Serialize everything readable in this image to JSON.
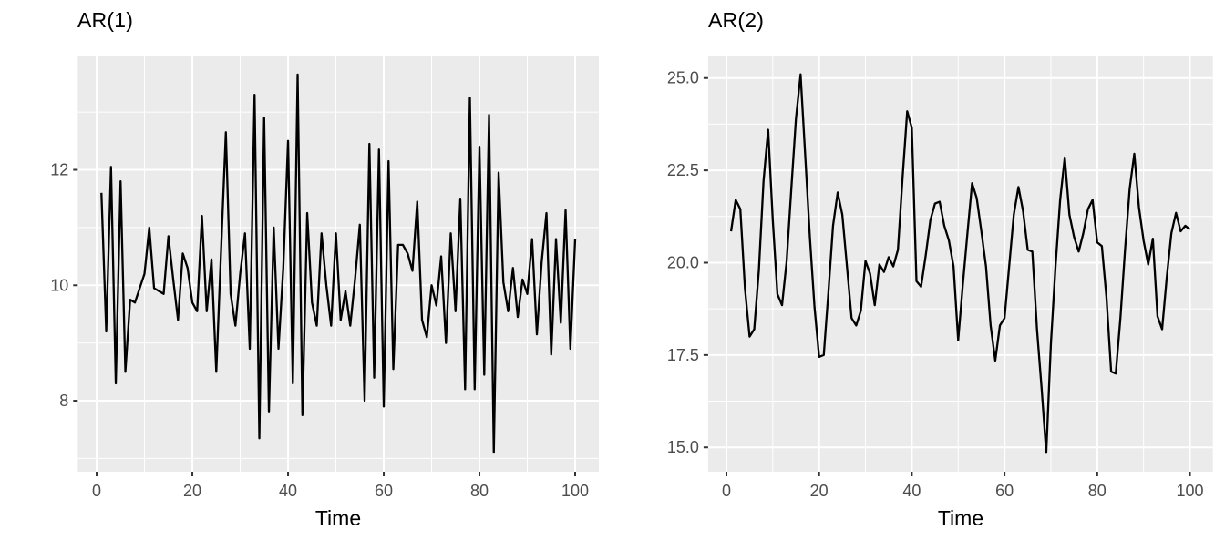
{
  "style": {
    "background": "#FFFFFF",
    "panel_bg": "#EBEBEB",
    "grid_color": "#FFFFFF",
    "line_color": "#000000",
    "tick_color": "#333333",
    "tick_label_color": "#4D4D4D",
    "text_color": "#000000"
  },
  "chart_data": [
    {
      "type": "line",
      "title": "AR(1)",
      "xlabel": "Time",
      "ylabel": "",
      "x_first": 1,
      "x_last": 100,
      "values": [
        11.6,
        9.2,
        12.05,
        8.3,
        11.8,
        8.5,
        9.75,
        9.7,
        9.95,
        10.2,
        11.0,
        9.95,
        9.9,
        9.85,
        10.85,
        10.1,
        9.4,
        10.55,
        10.3,
        9.7,
        9.55,
        11.2,
        9.55,
        10.45,
        8.5,
        10.6,
        12.65,
        9.85,
        9.3,
        10.2,
        10.9,
        8.9,
        13.3,
        7.35,
        12.9,
        7.8,
        11.0,
        8.9,
        10.3,
        12.5,
        8.3,
        13.65,
        7.75,
        11.25,
        9.7,
        9.3,
        10.9,
        10.0,
        9.3,
        10.9,
        9.4,
        9.9,
        9.3,
        10.1,
        11.05,
        8.0,
        12.45,
        8.4,
        12.35,
        7.9,
        12.15,
        8.55,
        10.7,
        10.7,
        10.55,
        10.25,
        11.45,
        9.4,
        9.1,
        10.0,
        9.65,
        10.5,
        9.0,
        10.9,
        9.55,
        11.5,
        8.2,
        13.25,
        8.2,
        12.4,
        8.45,
        12.95,
        7.1,
        11.95,
        10.05,
        9.55,
        10.3,
        9.45,
        10.1,
        9.85,
        10.8,
        9.15,
        10.4,
        11.25,
        8.8,
        10.8,
        9.35,
        11.3,
        8.9,
        10.8
      ],
      "xlim": [
        -3.95,
        104.95
      ],
      "ylim": [
        6.77,
        13.98
      ],
      "x_ticks": {
        "major": [
          0,
          20,
          40,
          60,
          80,
          100
        ],
        "labels": [
          "0",
          "20",
          "40",
          "60",
          "80",
          "100"
        ],
        "minor": [
          10,
          30,
          50,
          70,
          90
        ]
      },
      "y_ticks": {
        "major": [
          8,
          10,
          12
        ],
        "labels": [
          "8",
          "10",
          "12"
        ],
        "minor": [
          7,
          9,
          11,
          13
        ]
      },
      "grid": true,
      "legend": "none"
    },
    {
      "type": "line",
      "title": "AR(2)",
      "xlabel": "Time",
      "ylabel": "",
      "x_first": 1,
      "x_last": 100,
      "values": [
        20.85,
        21.7,
        21.45,
        19.3,
        18.0,
        18.2,
        19.8,
        22.2,
        23.6,
        21.15,
        19.15,
        18.85,
        20.05,
        22.0,
        23.9,
        25.1,
        22.9,
        20.7,
        18.8,
        17.45,
        17.5,
        19.2,
        21.0,
        21.9,
        21.3,
        19.9,
        18.5,
        18.3,
        18.7,
        20.05,
        19.7,
        18.85,
        19.95,
        19.75,
        20.15,
        19.9,
        20.35,
        22.3,
        24.1,
        23.65,
        19.5,
        19.35,
        20.2,
        21.15,
        21.6,
        21.65,
        21.0,
        20.6,
        19.9,
        17.9,
        19.4,
        20.8,
        22.15,
        21.75,
        20.85,
        19.9,
        18.3,
        17.35,
        18.3,
        18.5,
        19.9,
        21.3,
        22.05,
        21.4,
        20.35,
        20.3,
        18.2,
        16.6,
        14.85,
        17.8,
        19.9,
        21.7,
        22.85,
        21.3,
        20.7,
        20.3,
        20.8,
        21.45,
        21.7,
        20.55,
        20.45,
        19.05,
        17.05,
        17.0,
        18.5,
        20.35,
        22.0,
        22.95,
        21.5,
        20.6,
        19.95,
        20.65,
        18.55,
        18.2,
        19.6,
        20.8,
        21.35,
        20.85,
        21.0,
        20.9
      ],
      "xlim": [
        -3.95,
        104.95
      ],
      "ylim": [
        14.34,
        25.61
      ],
      "x_ticks": {
        "major": [
          0,
          20,
          40,
          60,
          80,
          100
        ],
        "labels": [
          "0",
          "20",
          "40",
          "60",
          "80",
          "100"
        ],
        "minor": [
          10,
          30,
          50,
          70,
          90
        ]
      },
      "y_ticks": {
        "major": [
          15,
          17.5,
          20,
          22.5,
          25
        ],
        "labels": [
          "15.0",
          "17.5",
          "20.0",
          "22.5",
          "25.0"
        ],
        "minor": [
          16.25,
          18.75,
          21.25,
          23.75
        ]
      },
      "grid": true,
      "legend": "none"
    }
  ]
}
